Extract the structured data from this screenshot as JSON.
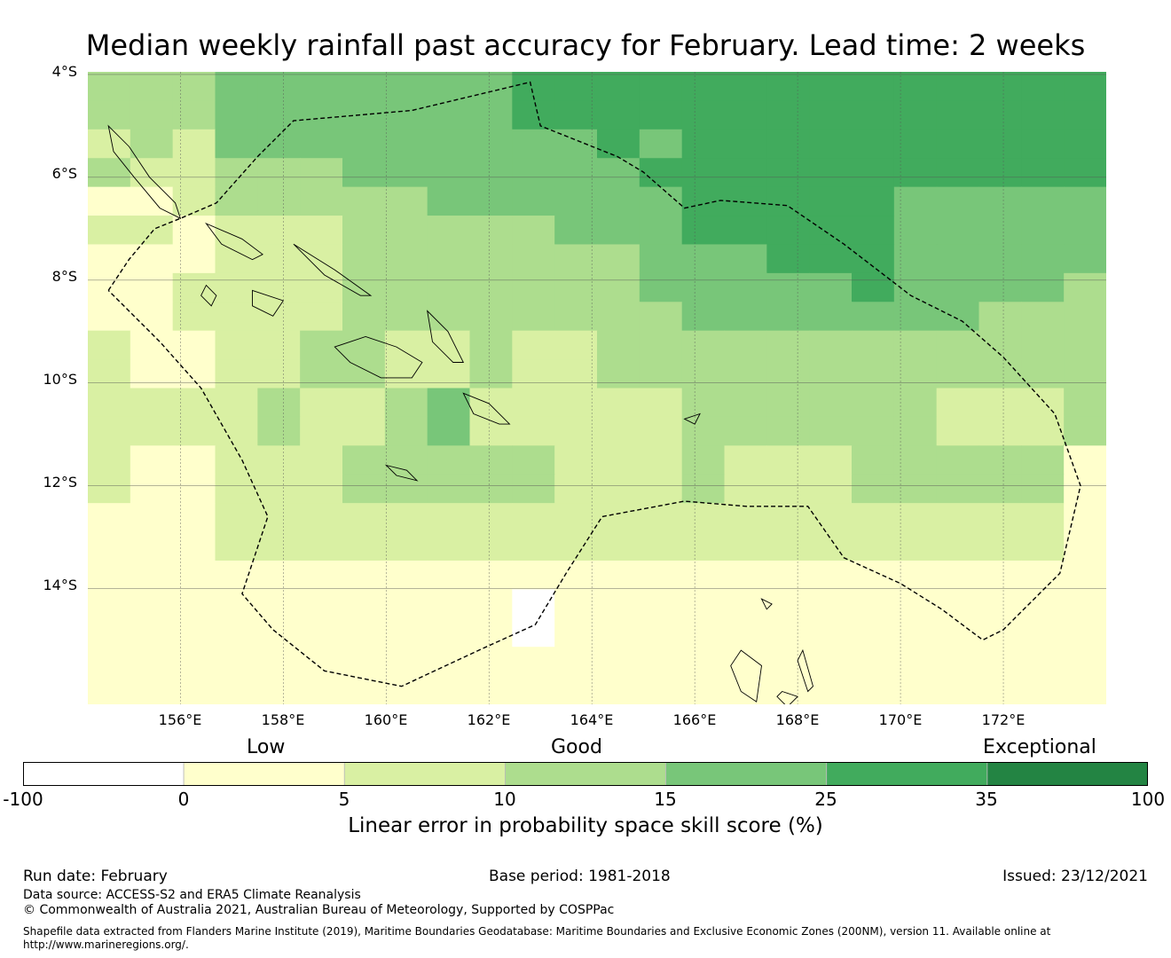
{
  "title": "Median weekly rainfall past accuracy for February. Lead time: 2 weeks",
  "lat_labels": [
    "4°S",
    "6°S",
    "8°S",
    "10°S",
    "12°S",
    "14°S"
  ],
  "lon_labels": [
    "156°E",
    "158°E",
    "160°E",
    "162°E",
    "164°E",
    "166°E",
    "168°E",
    "170°E",
    "172°E"
  ],
  "category_labels": {
    "low": "Low",
    "good": "Good",
    "exceptional": "Exceptional"
  },
  "colorbar": {
    "ticks": [
      "-100",
      "0",
      "5",
      "10",
      "15",
      "25",
      "35",
      "100"
    ],
    "colors": [
      "#ffffff",
      "#ffffcc",
      "#d9f0a3",
      "#addd8e",
      "#78c679",
      "#41ab5d",
      "#238443"
    ],
    "label": "Linear error in probability space skill score (%)"
  },
  "map": {
    "lat_range": [
      -16.25,
      -3.95
    ],
    "lon_range": [
      154.2,
      174.0
    ],
    "grid_lats": [
      -4,
      -6,
      -8,
      -10,
      -12,
      -14
    ],
    "grid_lons": [
      156,
      158,
      160,
      162,
      164,
      166,
      168,
      170,
      172
    ],
    "cell_columns": 24,
    "cell_rows": 22,
    "skill_grid": [
      "333444444455555555555555",
      "333444444455555555555555",
      "232444444444545555555555",
      "322333444444455555555555",
      "112333334444445555544444",
      "221222333334445555544444",
      "111222333333344455544444",
      "112222333333344444544443",
      "112222333333334444444333",
      "211223322322333333333333",
      "211223322322333333333333",
      "222232234222223333332223",
      "222232234222223333332223",
      "211222333332223222333331",
      "211222333332223222333331",
      "111222222222222222222221",
      "111222222222222222222221",
      "111111111111111111111111",
      "111111111101111111111111",
      "111111111101111111111111",
      "111111111111111111111111",
      "111111111111111111111111"
    ],
    "eez_boundary": [
      [
        154.6,
        -8.2
      ],
      [
        155.0,
        -7.6
      ],
      [
        155.5,
        -7.0
      ],
      [
        156.0,
        -6.8
      ],
      [
        156.7,
        -6.5
      ],
      [
        157.5,
        -5.6
      ],
      [
        158.2,
        -4.9
      ],
      [
        160.5,
        -4.7
      ],
      [
        162.8,
        -4.15
      ],
      [
        163.0,
        -5.0
      ],
      [
        164.5,
        -5.6
      ],
      [
        165.0,
        -5.9
      ],
      [
        165.8,
        -6.6
      ],
      [
        166.5,
        -6.45
      ],
      [
        167.8,
        -6.55
      ],
      [
        168.9,
        -7.3
      ],
      [
        170.2,
        -8.3
      ],
      [
        171.2,
        -8.8
      ],
      [
        172.0,
        -9.5
      ],
      [
        173.0,
        -10.6
      ],
      [
        173.5,
        -12.0
      ],
      [
        173.1,
        -13.7
      ],
      [
        172.0,
        -14.8
      ],
      [
        171.6,
        -15.0
      ],
      [
        170.8,
        -14.4
      ],
      [
        170.0,
        -13.9
      ],
      [
        168.9,
        -13.4
      ],
      [
        168.2,
        -12.4
      ],
      [
        167.0,
        -12.4
      ],
      [
        165.8,
        -12.3
      ],
      [
        164.2,
        -12.6
      ],
      [
        163.5,
        -13.7
      ],
      [
        162.9,
        -14.7
      ],
      [
        161.8,
        -15.2
      ],
      [
        160.3,
        -15.9
      ],
      [
        158.8,
        -15.6
      ],
      [
        157.8,
        -14.8
      ],
      [
        157.2,
        -14.1
      ],
      [
        157.7,
        -12.6
      ],
      [
        157.2,
        -11.5
      ],
      [
        156.4,
        -10.1
      ],
      [
        155.6,
        -9.2
      ],
      [
        154.6,
        -8.2
      ]
    ],
    "coastlines": [
      [
        [
          154.6,
          -5.0
        ],
        [
          155.0,
          -5.4
        ],
        [
          155.4,
          -6.0
        ],
        [
          155.9,
          -6.5
        ],
        [
          156.0,
          -6.8
        ],
        [
          155.6,
          -6.6
        ],
        [
          155.1,
          -6.0
        ],
        [
          154.7,
          -5.5
        ],
        [
          154.6,
          -5.0
        ]
      ],
      [
        [
          156.5,
          -6.9
        ],
        [
          157.2,
          -7.2
        ],
        [
          157.6,
          -7.5
        ],
        [
          157.4,
          -7.6
        ],
        [
          156.8,
          -7.3
        ],
        [
          156.5,
          -6.9
        ]
      ],
      [
        [
          158.2,
          -7.3
        ],
        [
          159.0,
          -7.8
        ],
        [
          159.7,
          -8.3
        ],
        [
          159.5,
          -8.3
        ],
        [
          158.8,
          -7.9
        ],
        [
          158.2,
          -7.3
        ]
      ],
      [
        [
          159.0,
          -9.3
        ],
        [
          159.6,
          -9.1
        ],
        [
          160.2,
          -9.3
        ],
        [
          160.7,
          -9.6
        ],
        [
          160.5,
          -9.9
        ],
        [
          159.9,
          -9.9
        ],
        [
          159.3,
          -9.6
        ],
        [
          159.0,
          -9.3
        ]
      ],
      [
        [
          160.8,
          -8.6
        ],
        [
          161.2,
          -9.0
        ],
        [
          161.5,
          -9.6
        ],
        [
          161.3,
          -9.6
        ],
        [
          160.9,
          -9.2
        ],
        [
          160.8,
          -8.6
        ]
      ],
      [
        [
          161.5,
          -10.2
        ],
        [
          162.0,
          -10.4
        ],
        [
          162.4,
          -10.8
        ],
        [
          162.2,
          -10.8
        ],
        [
          161.7,
          -10.6
        ],
        [
          161.5,
          -10.2
        ]
      ],
      [
        [
          157.4,
          -8.2
        ],
        [
          158.0,
          -8.4
        ],
        [
          157.8,
          -8.7
        ],
        [
          157.4,
          -8.5
        ],
        [
          157.4,
          -8.2
        ]
      ],
      [
        [
          156.5,
          -8.1
        ],
        [
          156.7,
          -8.3
        ],
        [
          156.6,
          -8.5
        ],
        [
          156.4,
          -8.3
        ],
        [
          156.5,
          -8.1
        ]
      ],
      [
        [
          160.0,
          -11.6
        ],
        [
          160.4,
          -11.7
        ],
        [
          160.6,
          -11.9
        ],
        [
          160.2,
          -11.8
        ],
        [
          160.0,
          -11.6
        ]
      ],
      [
        [
          166.9,
          -15.2
        ],
        [
          167.3,
          -15.5
        ],
        [
          167.2,
          -16.2
        ],
        [
          166.9,
          -16.0
        ],
        [
          166.7,
          -15.5
        ],
        [
          166.9,
          -15.2
        ]
      ],
      [
        [
          168.1,
          -15.2
        ],
        [
          168.3,
          -15.9
        ],
        [
          168.2,
          -16.0
        ],
        [
          168.0,
          -15.4
        ],
        [
          168.1,
          -15.2
        ]
      ],
      [
        [
          167.7,
          -16.0
        ],
        [
          168.0,
          -16.1
        ],
        [
          167.8,
          -16.3
        ],
        [
          167.6,
          -16.1
        ],
        [
          167.7,
          -16.0
        ]
      ],
      [
        [
          165.8,
          -10.7
        ],
        [
          166.1,
          -10.6
        ],
        [
          166.0,
          -10.8
        ],
        [
          165.8,
          -10.7
        ]
      ],
      [
        [
          167.3,
          -14.2
        ],
        [
          167.5,
          -14.3
        ],
        [
          167.4,
          -14.4
        ],
        [
          167.3,
          -14.2
        ]
      ]
    ]
  },
  "footer": {
    "run_date": "Run date: February",
    "base_period": "Base period: 1981-2018",
    "issued": "Issued: 23/12/2021",
    "data_source": "Data source: ACCESS-S2 and ERA5 Climate Reanalysis",
    "copyright": "© Commonwealth of Australia 2021, Australian Bureau of Meteorology, Supported by COSPPac",
    "shapefile_line1": "Shapefile data extracted from Flanders Marine Institute (2019), Maritime Boundaries Geodatabase: Maritime Boundaries and Exclusive Economic Zones (200NM), version 11. Available online at",
    "shapefile_line2": "http://www.marineregions.org/."
  }
}
